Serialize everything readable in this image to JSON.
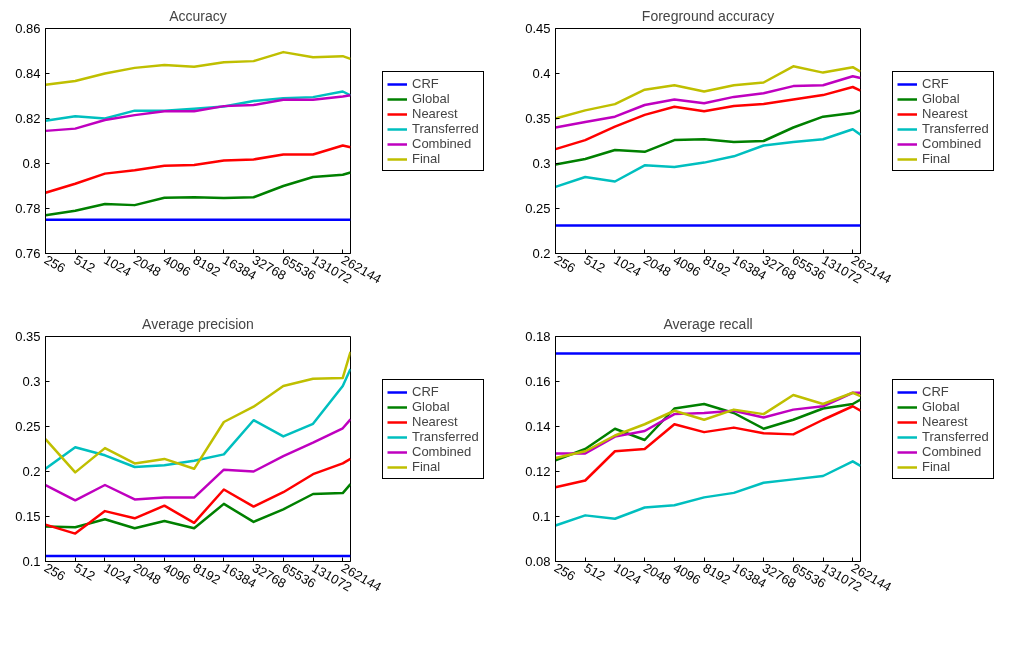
{
  "chart_data": [
    {
      "type": "line",
      "title": "Accuracy",
      "log": "x",
      "x": [
        256,
        512,
        1024,
        2048,
        4096,
        8192,
        16384,
        32768,
        65536,
        131072,
        262144,
        314000
      ],
      "xlim": [
        256,
        314000
      ],
      "xticks": [
        256,
        512,
        1024,
        2048,
        4096,
        8192,
        16384,
        32768,
        65536,
        131072,
        262144
      ],
      "ylim": [
        0.76,
        0.86
      ],
      "yticks": [
        0.76,
        0.78,
        0.8,
        0.82,
        0.84,
        0.86
      ],
      "grid": false,
      "legend": "right",
      "series": [
        {
          "name": "CRF",
          "color": "#0000ff",
          "values": [
            0.775,
            0.775,
            0.775,
            0.775,
            0.775,
            0.775,
            0.775,
            0.775,
            0.775,
            0.775,
            0.775,
            0.775
          ]
        },
        {
          "name": "Global",
          "color": "#008000",
          "values": [
            0.777,
            0.779,
            0.782,
            0.7815,
            0.7848,
            0.785,
            0.7847,
            0.785,
            0.79,
            0.794,
            0.795,
            0.796
          ]
        },
        {
          "name": "Nearest",
          "color": "#ff0000",
          "values": [
            0.787,
            0.791,
            0.7955,
            0.797,
            0.799,
            0.7993,
            0.8013,
            0.8018,
            0.804,
            0.804,
            0.808,
            0.8072
          ]
        },
        {
          "name": "Transferred",
          "color": "#00bfbf",
          "values": [
            0.819,
            0.821,
            0.82,
            0.8235,
            0.8235,
            0.8243,
            0.8253,
            0.8278,
            0.829,
            0.8295,
            0.832,
            0.8303
          ]
        },
        {
          "name": "Combined",
          "color": "#bf00bf",
          "values": [
            0.8145,
            0.8155,
            0.8193,
            0.8215,
            0.8232,
            0.8232,
            0.8255,
            0.826,
            0.8283,
            0.8283,
            0.8298,
            0.8303
          ]
        },
        {
          "name": "Final",
          "color": "#bfbf00",
          "values": [
            0.835,
            0.8367,
            0.84,
            0.8425,
            0.8438,
            0.843,
            0.845,
            0.8455,
            0.8495,
            0.8472,
            0.8477,
            0.8465
          ]
        }
      ]
    },
    {
      "type": "line",
      "title": "Foreground accuracy",
      "log": "x",
      "x": [
        256,
        512,
        1024,
        2048,
        4096,
        8192,
        16384,
        32768,
        65536,
        131072,
        262144,
        314000
      ],
      "xlim": [
        256,
        314000
      ],
      "xticks": [
        256,
        512,
        1024,
        2048,
        4096,
        8192,
        16384,
        32768,
        65536,
        131072,
        262144
      ],
      "ylim": [
        0.2,
        0.45
      ],
      "yticks": [
        0.2,
        0.25,
        0.3,
        0.35,
        0.4,
        0.45
      ],
      "grid": false,
      "legend": "right",
      "series": [
        {
          "name": "CRF",
          "color": "#0000ff",
          "values": [
            0.231,
            0.231,
            0.231,
            0.231,
            0.231,
            0.231,
            0.231,
            0.231,
            0.231,
            0.231,
            0.231,
            0.231
          ]
        },
        {
          "name": "Global",
          "color": "#008000",
          "values": [
            0.299,
            0.305,
            0.315,
            0.313,
            0.326,
            0.327,
            0.324,
            0.325,
            0.34,
            0.352,
            0.356,
            0.359
          ]
        },
        {
          "name": "Nearest",
          "color": "#ff0000",
          "values": [
            0.316,
            0.326,
            0.341,
            0.354,
            0.363,
            0.358,
            0.364,
            0.366,
            0.371,
            0.376,
            0.385,
            0.381
          ]
        },
        {
          "name": "Transferred",
          "color": "#00bfbf",
          "values": [
            0.274,
            0.285,
            0.28,
            0.298,
            0.296,
            0.301,
            0.308,
            0.32,
            0.324,
            0.327,
            0.338,
            0.332
          ]
        },
        {
          "name": "Combined",
          "color": "#bf00bf",
          "values": [
            0.34,
            0.346,
            0.352,
            0.365,
            0.371,
            0.367,
            0.374,
            0.378,
            0.386,
            0.387,
            0.397,
            0.395
          ]
        },
        {
          "name": "Final",
          "color": "#bfbf00",
          "values": [
            0.35,
            0.359,
            0.366,
            0.382,
            0.387,
            0.38,
            0.387,
            0.39,
            0.408,
            0.401,
            0.407,
            0.402
          ]
        }
      ]
    },
    {
      "type": "line",
      "title": "Average precision",
      "log": "x",
      "x": [
        256,
        512,
        1024,
        2048,
        4096,
        8192,
        16384,
        32768,
        65536,
        131072,
        262144,
        314000
      ],
      "xlim": [
        256,
        314000
      ],
      "xticks": [
        256,
        512,
        1024,
        2048,
        4096,
        8192,
        16384,
        32768,
        65536,
        131072,
        262144
      ],
      "ylim": [
        0.1,
        0.35
      ],
      "yticks": [
        0.1,
        0.15,
        0.2,
        0.25,
        0.3,
        0.35
      ],
      "grid": false,
      "legend": "right",
      "series": [
        {
          "name": "CRF",
          "color": "#0000ff",
          "values": [
            0.106,
            0.106,
            0.106,
            0.106,
            0.106,
            0.106,
            0.106,
            0.106,
            0.106,
            0.106,
            0.106,
            0.106
          ]
        },
        {
          "name": "Global",
          "color": "#008000",
          "values": [
            0.139,
            0.138,
            0.147,
            0.137,
            0.145,
            0.137,
            0.164,
            0.144,
            0.158,
            0.175,
            0.176,
            0.186
          ]
        },
        {
          "name": "Nearest",
          "color": "#ff0000",
          "values": [
            0.141,
            0.131,
            0.156,
            0.148,
            0.162,
            0.143,
            0.18,
            0.161,
            0.177,
            0.197,
            0.209,
            0.214
          ]
        },
        {
          "name": "Transferred",
          "color": "#00bfbf",
          "values": [
            0.203,
            0.227,
            0.218,
            0.205,
            0.207,
            0.212,
            0.219,
            0.257,
            0.239,
            0.253,
            0.295,
            0.314
          ]
        },
        {
          "name": "Combined",
          "color": "#bf00bf",
          "values": [
            0.185,
            0.168,
            0.185,
            0.169,
            0.171,
            0.171,
            0.202,
            0.2,
            0.217,
            0.232,
            0.248,
            0.258
          ]
        },
        {
          "name": "Final",
          "color": "#bfbf00",
          "values": [
            0.236,
            0.199,
            0.226,
            0.209,
            0.214,
            0.203,
            0.255,
            0.272,
            0.295,
            0.303,
            0.304,
            0.333
          ]
        }
      ]
    },
    {
      "type": "line",
      "title": "Average recall",
      "log": "x",
      "x": [
        256,
        512,
        1024,
        2048,
        4096,
        8192,
        16384,
        32768,
        65536,
        131072,
        262144,
        314000
      ],
      "xlim": [
        256,
        314000
      ],
      "xticks": [
        256,
        512,
        1024,
        2048,
        4096,
        8192,
        16384,
        32768,
        65536,
        131072,
        262144
      ],
      "ylim": [
        0.08,
        0.18
      ],
      "yticks": [
        0.08,
        0.1,
        0.12,
        0.14,
        0.16,
        0.18
      ],
      "grid": false,
      "legend": "right",
      "series": [
        {
          "name": "CRF",
          "color": "#0000ff",
          "values": [
            0.1724,
            0.1724,
            0.1724,
            0.1724,
            0.1724,
            0.1724,
            0.1724,
            0.1724,
            0.1724,
            0.1724,
            0.1724,
            0.1724
          ]
        },
        {
          "name": "Global",
          "color": "#008000",
          "values": [
            0.125,
            0.13,
            0.139,
            0.134,
            0.148,
            0.15,
            0.146,
            0.139,
            0.143,
            0.148,
            0.15,
            0.152
          ]
        },
        {
          "name": "Nearest",
          "color": "#ff0000",
          "values": [
            0.113,
            0.116,
            0.129,
            0.13,
            0.141,
            0.1375,
            0.1395,
            0.137,
            0.1365,
            0.143,
            0.149,
            0.147
          ]
        },
        {
          "name": "Transferred",
          "color": "#00bfbf",
          "values": [
            0.096,
            0.1005,
            0.099,
            0.104,
            0.105,
            0.1085,
            0.1105,
            0.115,
            0.1165,
            0.118,
            0.1245,
            0.1225
          ]
        },
        {
          "name": "Combined",
          "color": "#bf00bf",
          "values": [
            0.128,
            0.128,
            0.1355,
            0.138,
            0.1455,
            0.146,
            0.147,
            0.144,
            0.1475,
            0.149,
            0.155,
            0.155
          ]
        },
        {
          "name": "Final",
          "color": "#bfbf00",
          "values": [
            0.126,
            0.129,
            0.136,
            0.141,
            0.147,
            0.143,
            0.1475,
            0.1455,
            0.154,
            0.15,
            0.155,
            0.1535
          ]
        }
      ]
    }
  ]
}
